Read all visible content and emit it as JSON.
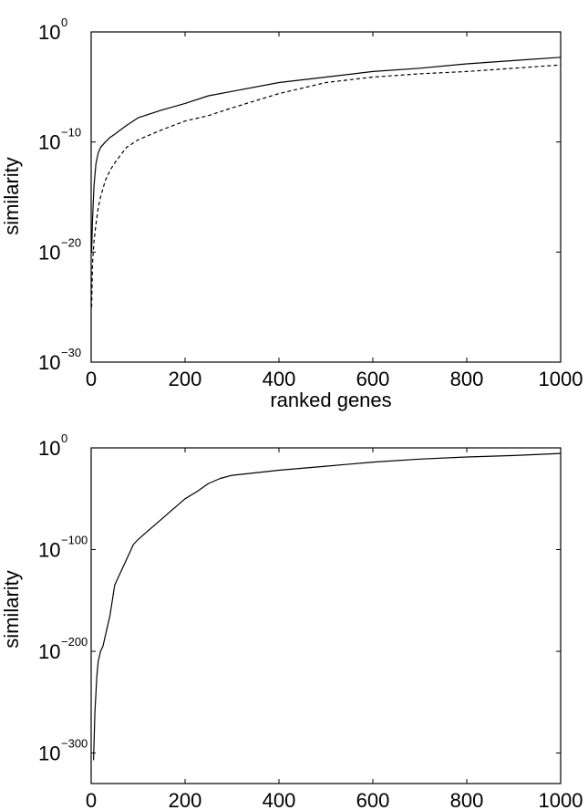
{
  "chart_data": [
    {
      "type": "line",
      "xlabel": "ranked genes",
      "ylabel": "similarity",
      "xlim": [
        0,
        1000
      ],
      "ylim_log10": [
        -30,
        0
      ],
      "y_scale": "log",
      "x_ticks": [
        0,
        200,
        400,
        600,
        800,
        1000
      ],
      "y_ticks": [
        {
          "base": "10",
          "exp": "0",
          "value": 0
        },
        {
          "base": "10",
          "exp": "−10",
          "value": -10
        },
        {
          "base": "10",
          "exp": "−20",
          "value": -20
        },
        {
          "base": "10",
          "exp": "−30",
          "value": -30
        }
      ],
      "grid": false,
      "series": [
        {
          "style": "solid",
          "x": [
            1,
            3,
            6,
            10,
            15,
            20,
            30,
            40,
            50,
            75,
            100,
            150,
            200,
            250,
            300,
            400,
            500,
            600,
            700,
            800,
            900,
            1000
          ],
          "log10_y": [
            -20,
            -17,
            -14,
            -12,
            -11,
            -10.5,
            -10,
            -9.6,
            -9.3,
            -8.5,
            -7.8,
            -7.1,
            -6.5,
            -5.8,
            -5.4,
            -4.6,
            -4.1,
            -3.6,
            -3.3,
            -2.9,
            -2.6,
            -2.3
          ]
        },
        {
          "style": "dashed",
          "x": [
            1,
            3,
            6,
            10,
            15,
            20,
            30,
            40,
            50,
            75,
            100,
            150,
            200,
            250,
            300,
            400,
            500,
            600,
            700,
            800,
            900,
            1000
          ],
          "log10_y": [
            -25,
            -21,
            -19,
            -17.5,
            -16,
            -15,
            -13.5,
            -12.6,
            -11.9,
            -10.5,
            -9.8,
            -8.9,
            -8.1,
            -7.6,
            -6.9,
            -5.6,
            -4.6,
            -4.1,
            -3.8,
            -3.6,
            -3.3,
            -3.0
          ]
        }
      ]
    },
    {
      "type": "line",
      "xlabel": "",
      "ylabel": "similarity",
      "xlim": [
        0,
        1000
      ],
      "ylim_log10": [
        -330,
        0
      ],
      "y_scale": "log",
      "x_ticks": [
        0,
        200,
        400,
        600,
        800,
        1000
      ],
      "y_ticks": [
        {
          "base": "10",
          "exp": "0",
          "value": 0
        },
        {
          "base": "10",
          "exp": "−100",
          "value": -100
        },
        {
          "base": "10",
          "exp": "−200",
          "value": -200
        },
        {
          "base": "10",
          "exp": "−300",
          "value": -300
        }
      ],
      "grid": false,
      "series": [
        {
          "style": "solid",
          "x": [
            5,
            8,
            12,
            15,
            20,
            25,
            30,
            35,
            40,
            45,
            50,
            60,
            70,
            80,
            90,
            100,
            125,
            150,
            175,
            200,
            225,
            250,
            275,
            300,
            400,
            500,
            600,
            700,
            800,
            900,
            1000
          ],
          "log10_y": [
            -307,
            -260,
            -225,
            -210,
            -200,
            -195,
            -185,
            -175,
            -165,
            -150,
            -135,
            -125,
            -115,
            -105,
            -95,
            -90,
            -80,
            -70,
            -60,
            -50,
            -43,
            -35,
            -30,
            -27,
            -22,
            -18,
            -14,
            -11,
            -9,
            -7.5,
            -5.5
          ]
        }
      ]
    }
  ]
}
